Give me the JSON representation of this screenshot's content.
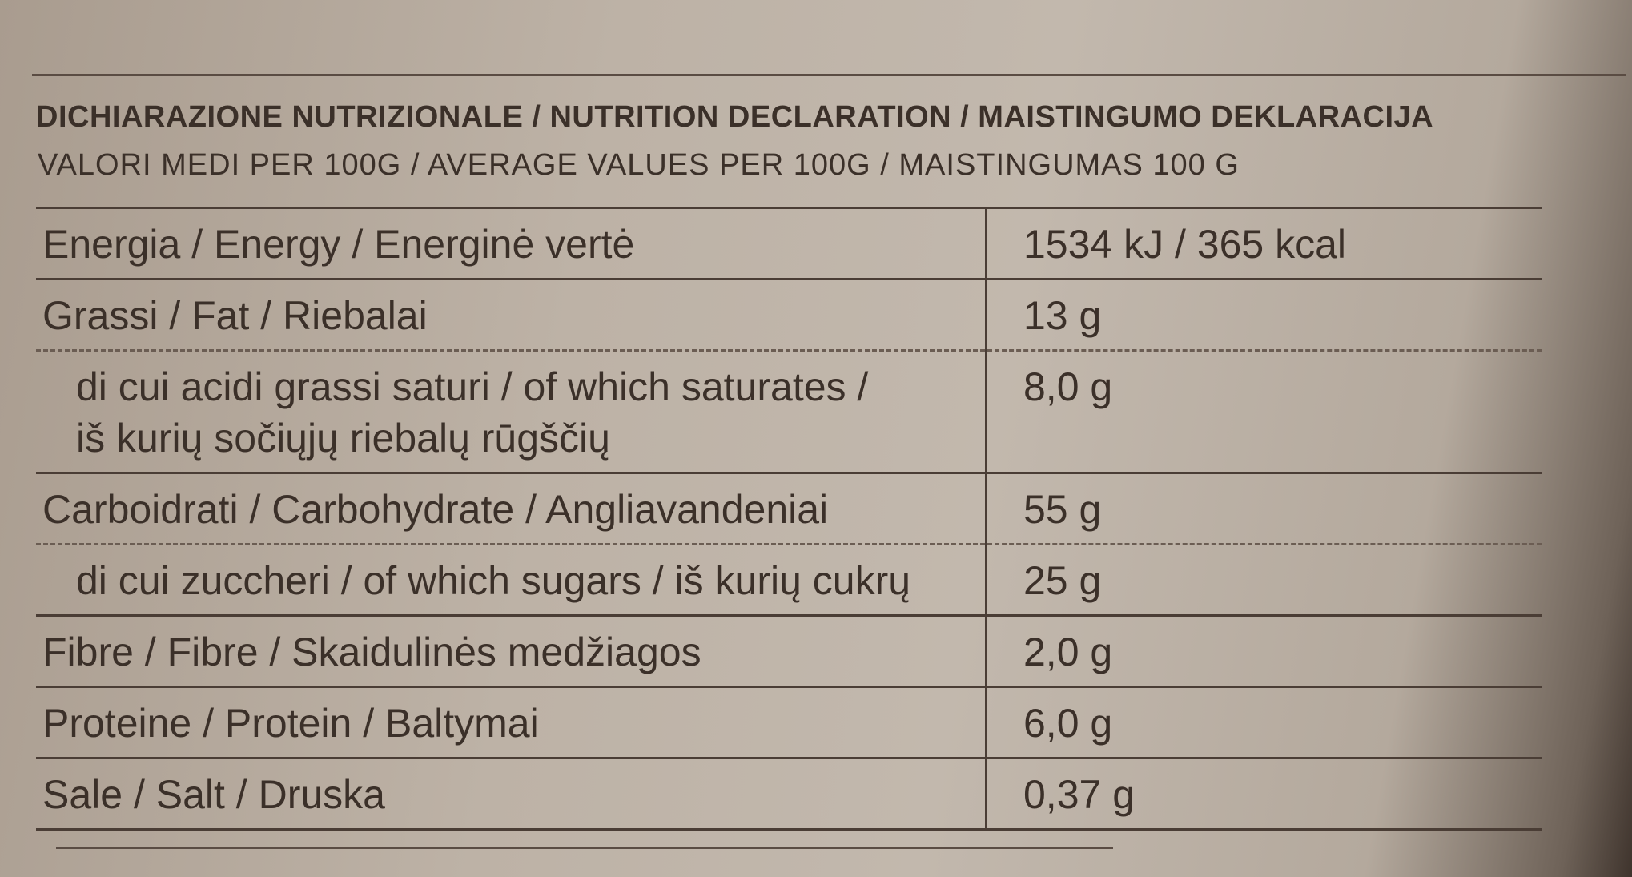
{
  "header": {
    "title": "DICHIARAZIONE NUTRIZIONALE / NUTRITION DECLARATION / MAISTINGUMO DEKLARACIJA",
    "subtitle": "VALORI MEDI PER 100G / AVERAGE VALUES PER 100G / MAISTINGUMAS 100 G"
  },
  "table": {
    "rows": [
      {
        "label": [
          "Energia / Energy / Energinė vertė"
        ],
        "value": "1534 kJ / 365 kcal"
      },
      {
        "label": [
          "Grassi / Fat / Riebalai"
        ],
        "value": "13 g"
      },
      {
        "label": [
          "di cui acidi grassi saturi / of which saturates /",
          "iš kurių sočiųjų riebalų rūgščių"
        ],
        "value": "8,0 g"
      },
      {
        "label": [
          "Carboidrati / Carbohydrate / Angliavandeniai"
        ],
        "value": "55 g"
      },
      {
        "label": [
          "di cui zuccheri / of which sugars / iš kurių cukrų"
        ],
        "value": "25 g"
      },
      {
        "label": [
          "Fibre / Fibre / Skaidulinės medžiagos"
        ],
        "value": "2,0 g"
      },
      {
        "label": [
          "Proteine / Protein / Baltymai"
        ],
        "value": "6,0 g"
      },
      {
        "label": [
          "Sale / Salt / Druska"
        ],
        "value": "0,37 g"
      }
    ]
  }
}
